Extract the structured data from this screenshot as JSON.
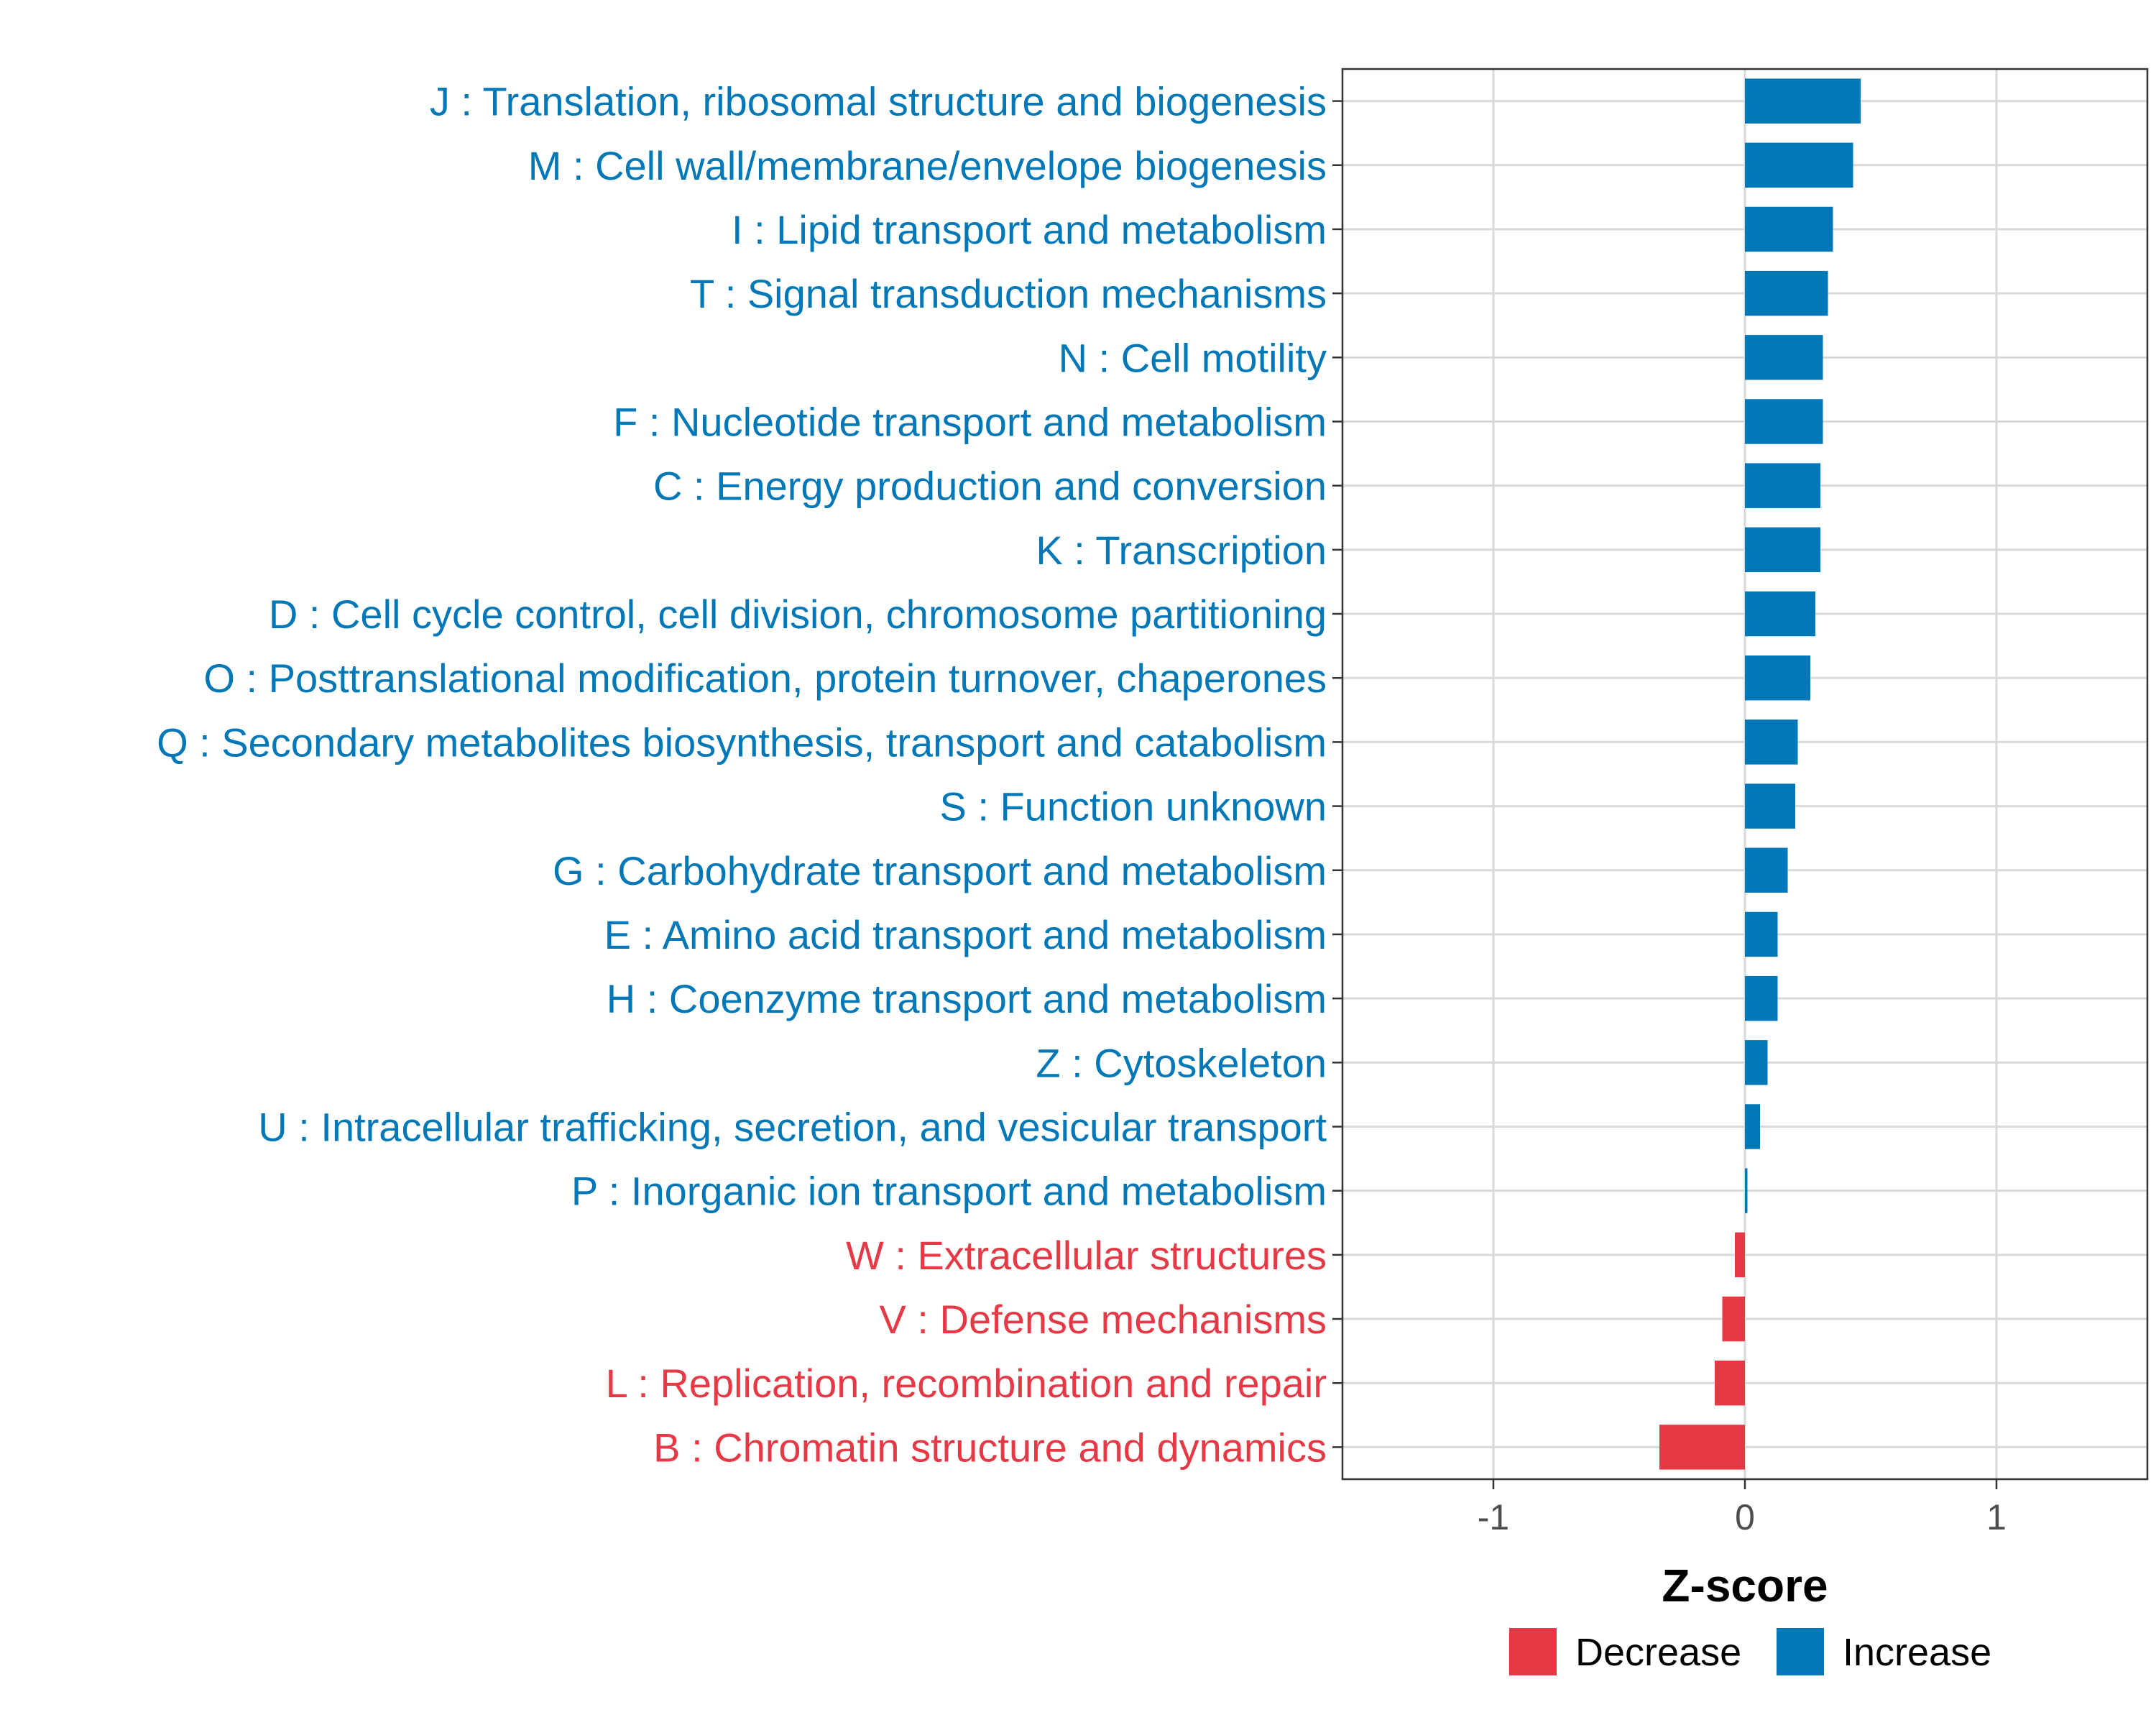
{
  "chart_data": {
    "type": "bar",
    "orientation": "horizontal",
    "xlabel": "Z-score",
    "xlim": [
      -1.6,
      1.6
    ],
    "xticks": [
      -1,
      0,
      1
    ],
    "xtick_labels": [
      "-1",
      "0",
      "1"
    ],
    "grid": true,
    "legend_position": "bottom",
    "colors": {
      "Decrease": "#e63946",
      "Increase": "#0077b6"
    },
    "legend": [
      {
        "name": "Decrease",
        "color": "#e63946"
      },
      {
        "name": "Increase",
        "color": "#0077b6"
      }
    ],
    "categories": [
      "J : Translation, ribosomal structure and biogenesis",
      "M : Cell wall/membrane/envelope biogenesis",
      "I : Lipid transport and metabolism",
      "T : Signal transduction mechanisms",
      "N : Cell motility",
      "F : Nucleotide transport and metabolism",
      "C : Energy production and conversion",
      "K : Transcription",
      "D : Cell cycle control, cell division, chromosome partitioning",
      "O : Posttranslational modification, protein turnover, chaperones",
      "Q : Secondary metabolites biosynthesis, transport and catabolism",
      "S : Function unknown",
      "G : Carbohydrate transport and metabolism",
      "E : Amino acid transport and metabolism",
      "H : Coenzyme transport and metabolism",
      "Z : Cytoskeleton",
      "U : Intracellular trafficking, secretion, and vesicular transport",
      "P : Inorganic ion transport and metabolism",
      "W : Extracellular structures",
      "V : Defense mechanisms",
      "L : Replication, recombination and repair",
      "B : Chromatin structure and dynamics"
    ],
    "values": [
      0.46,
      0.43,
      0.35,
      0.33,
      0.31,
      0.31,
      0.3,
      0.3,
      0.28,
      0.26,
      0.21,
      0.2,
      0.17,
      0.13,
      0.13,
      0.09,
      0.06,
      0.01,
      -0.04,
      -0.09,
      -0.12,
      -0.34
    ],
    "groups": [
      "Increase",
      "Increase",
      "Increase",
      "Increase",
      "Increase",
      "Increase",
      "Increase",
      "Increase",
      "Increase",
      "Increase",
      "Increase",
      "Increase",
      "Increase",
      "Increase",
      "Increase",
      "Increase",
      "Increase",
      "Increase",
      "Decrease",
      "Decrease",
      "Decrease",
      "Decrease"
    ]
  }
}
